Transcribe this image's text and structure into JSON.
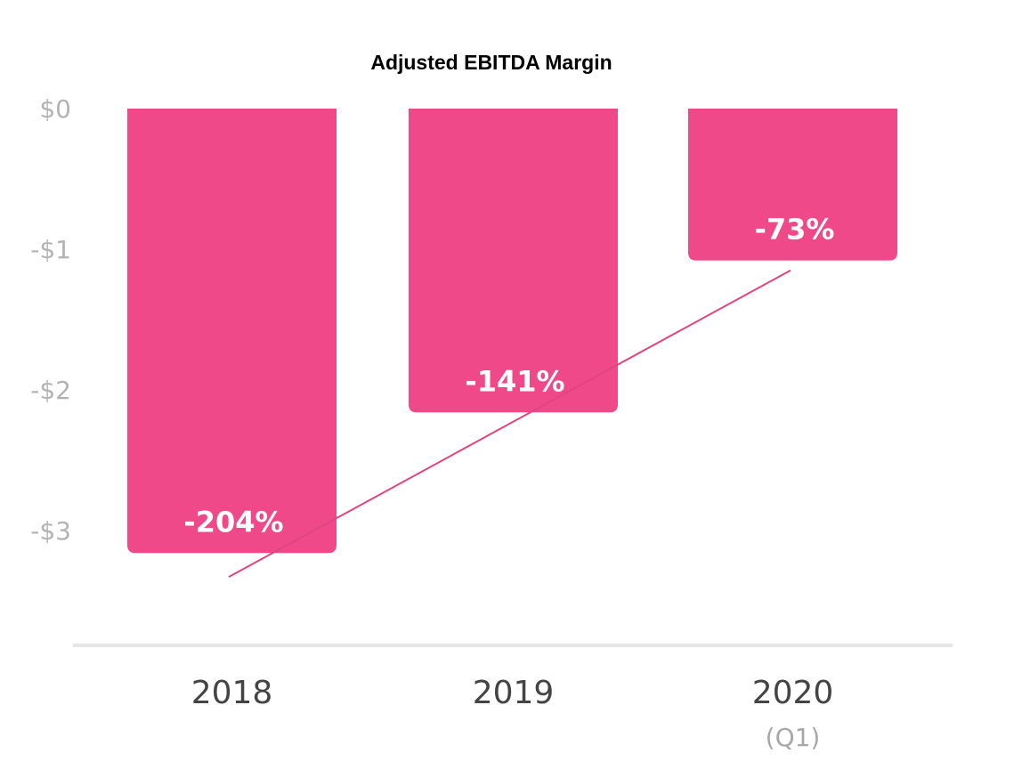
{
  "chart_data": {
    "type": "bar",
    "title": "Adjusted EBITDA Margin",
    "categories": [
      "2018",
      "2019",
      "2020"
    ],
    "category_sublabels": [
      "",
      "",
      "(Q1)"
    ],
    "values": [
      -3.16,
      -2.16,
      -1.08
    ],
    "data_labels": [
      "-204%",
      "-141%",
      "-73%"
    ],
    "y_ticks": [
      {
        "value": 0,
        "label": "$0"
      },
      {
        "value": -1,
        "label": "-$1"
      },
      {
        "value": -2,
        "label": "-$2"
      },
      {
        "value": -3,
        "label": "-$3"
      }
    ],
    "ylim": [
      -3.65,
      0
    ],
    "xlabel": "",
    "ylabel": "",
    "grid": false,
    "legend": "none",
    "trend_line": {
      "from": -3.33,
      "to": -1.15
    },
    "colors": {
      "bar": "#f0498a",
      "trend": "#e0457e",
      "axis": "#e6e6e6"
    }
  }
}
